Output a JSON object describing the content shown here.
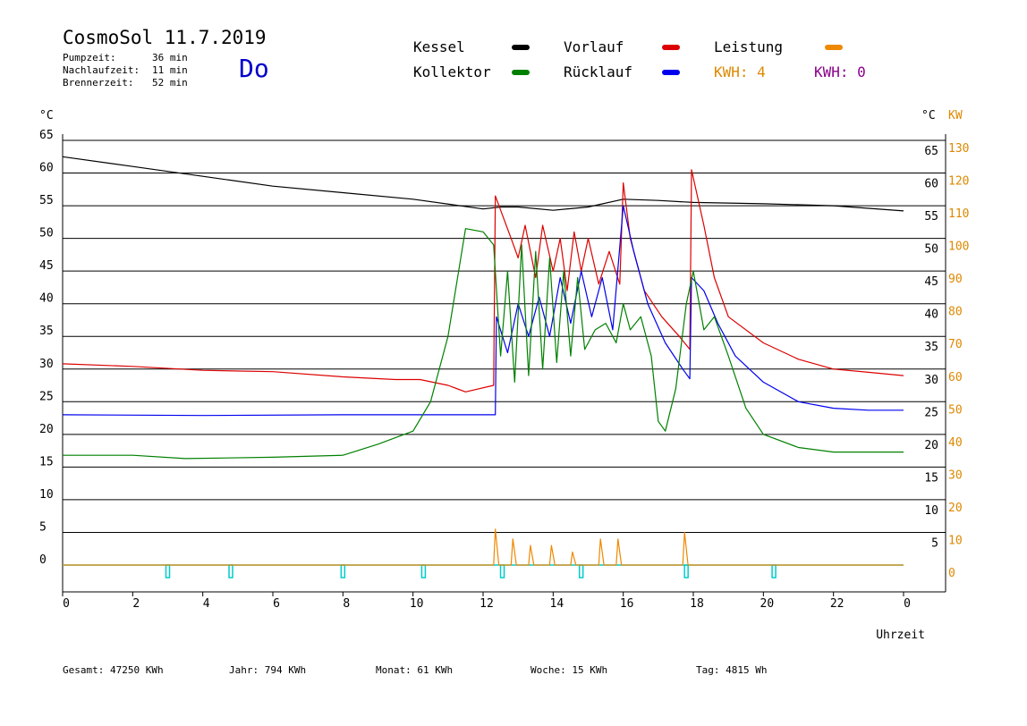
{
  "header": {
    "title": "CosmoSol 11.7.2019",
    "day": "Do",
    "stats": [
      {
        "label": "Pumpzeit:",
        "value": "36 min"
      },
      {
        "label": "Nachlaufzeit:",
        "value": "11 min"
      },
      {
        "label": "Brennerzeit:",
        "value": "52 min"
      }
    ]
  },
  "legend": {
    "kessel": {
      "label": "Kessel",
      "color": "#000000"
    },
    "vorlauf": {
      "label": "Vorlauf",
      "color": "#dd0000"
    },
    "leistung": {
      "label": "Leistung",
      "color": "#ee8800"
    },
    "kollektor": {
      "label": "Kollektor",
      "color": "#008000"
    },
    "ruecklauf": {
      "label": "Rücklauf",
      "color": "#0000ee"
    },
    "kwh1": {
      "label": "KWH: 4",
      "color": "#dd8800"
    },
    "kwh2": {
      "label": "KWH: 0",
      "color": "#880088"
    }
  },
  "footer": {
    "gesamt": "Gesamt:  47250 KWh",
    "jahr": "Jahr:    794 KWh",
    "monat": "Monat:    61 KWh",
    "woche": "Woche:    15 KWh",
    "tag": "Tag:   4815 Wh"
  },
  "chart_data": {
    "type": "line",
    "xlabel": "Uhrzeit",
    "ylabel_left": "°C",
    "ylabel_right_temp": "°C",
    "ylabel_right_power": "KW",
    "xlim": [
      0,
      24
    ],
    "ylim": [
      0,
      65
    ],
    "x_ticks": [
      "0",
      "2",
      "4",
      "6",
      "8",
      "10",
      "12",
      "14",
      "16",
      "18",
      "20",
      "22",
      "0"
    ],
    "y_ticks_left": [
      "0",
      "5",
      "10",
      "15",
      "20",
      "25",
      "30",
      "35",
      "40",
      "45",
      "50",
      "55",
      "60",
      "65"
    ],
    "y_ticks_right_temp": [
      "5",
      "10",
      "15",
      "20",
      "25",
      "30",
      "35",
      "40",
      "45",
      "50",
      "55",
      "60",
      "65"
    ],
    "y_ticks_right_power": [
      "0",
      "10",
      "20",
      "30",
      "40",
      "50",
      "60",
      "70",
      "80",
      "90",
      "100",
      "110",
      "120",
      "130"
    ],
    "grid": true,
    "series": [
      {
        "name": "Kessel",
        "color": "#000000",
        "points": [
          [
            0,
            62.5
          ],
          [
            2,
            61
          ],
          [
            4,
            59.5
          ],
          [
            6,
            58
          ],
          [
            8,
            57
          ],
          [
            10,
            56
          ],
          [
            12,
            54.5
          ],
          [
            12.5,
            54.8
          ],
          [
            13,
            54.8
          ],
          [
            14,
            54.3
          ],
          [
            15,
            54.8
          ],
          [
            16,
            56
          ],
          [
            17,
            55.8
          ],
          [
            18,
            55.5
          ],
          [
            20,
            55.3
          ],
          [
            22,
            55
          ],
          [
            24,
            54.2
          ]
        ]
      },
      {
        "name": "Vorlauf",
        "color": "#dd0000",
        "points": [
          [
            0,
            30.8
          ],
          [
            2,
            30.4
          ],
          [
            4,
            29.8
          ],
          [
            6,
            29.6
          ],
          [
            8,
            28.8
          ],
          [
            9.5,
            28.4
          ],
          [
            10.2,
            28.4
          ],
          [
            11,
            27.5
          ],
          [
            11.5,
            26.5
          ],
          [
            12.3,
            27.5
          ],
          [
            12.35,
            56.5
          ],
          [
            12.8,
            50
          ],
          [
            13,
            47
          ],
          [
            13.2,
            52
          ],
          [
            13.5,
            44
          ],
          [
            13.7,
            52
          ],
          [
            14,
            45
          ],
          [
            14.2,
            50
          ],
          [
            14.4,
            42
          ],
          [
            14.6,
            51
          ],
          [
            14.8,
            45
          ],
          [
            15,
            50
          ],
          [
            15.3,
            43
          ],
          [
            15.6,
            48
          ],
          [
            15.9,
            43
          ],
          [
            16.0,
            58.5
          ],
          [
            16.2,
            50
          ],
          [
            16.6,
            42
          ],
          [
            17.1,
            38
          ],
          [
            17.6,
            35
          ],
          [
            17.9,
            33
          ],
          [
            17.95,
            60.5
          ],
          [
            18.3,
            52
          ],
          [
            18.6,
            44
          ],
          [
            19,
            38
          ],
          [
            20,
            34
          ],
          [
            21,
            31.5
          ],
          [
            22,
            30
          ],
          [
            23,
            29.5
          ],
          [
            24,
            29
          ]
        ]
      },
      {
        "name": "Rücklauf",
        "color": "#0000ee",
        "points": [
          [
            0,
            23
          ],
          [
            4,
            22.9
          ],
          [
            8,
            23
          ],
          [
            10,
            23
          ],
          [
            12.35,
            23
          ],
          [
            12.38,
            38
          ],
          [
            12.7,
            32.5
          ],
          [
            13,
            40
          ],
          [
            13.3,
            35
          ],
          [
            13.6,
            41
          ],
          [
            13.9,
            35
          ],
          [
            14.2,
            44
          ],
          [
            14.5,
            37
          ],
          [
            14.8,
            45
          ],
          [
            15.1,
            38
          ],
          [
            15.4,
            44
          ],
          [
            15.7,
            36
          ],
          [
            16.0,
            55
          ],
          [
            16.3,
            48
          ],
          [
            16.7,
            40
          ],
          [
            17.2,
            34
          ],
          [
            17.7,
            30
          ],
          [
            17.9,
            28.5
          ],
          [
            17.95,
            44
          ],
          [
            18.3,
            42
          ],
          [
            18.7,
            37
          ],
          [
            19.2,
            32
          ],
          [
            20,
            28
          ],
          [
            21,
            25
          ],
          [
            22,
            24
          ],
          [
            23,
            23.7
          ],
          [
            24,
            23.7
          ]
        ]
      },
      {
        "name": "Kollektor",
        "color": "#008000",
        "points": [
          [
            0,
            16.8
          ],
          [
            2,
            16.8
          ],
          [
            3.5,
            16.3
          ],
          [
            6,
            16.5
          ],
          [
            8,
            16.8
          ],
          [
            9,
            18.5
          ],
          [
            10,
            20.5
          ],
          [
            10.5,
            25
          ],
          [
            11,
            35
          ],
          [
            11.5,
            51.5
          ],
          [
            12,
            51
          ],
          [
            12.3,
            49
          ],
          [
            12.5,
            32
          ],
          [
            12.7,
            45
          ],
          [
            12.9,
            28
          ],
          [
            13.1,
            49
          ],
          [
            13.3,
            29
          ],
          [
            13.5,
            48
          ],
          [
            13.7,
            30
          ],
          [
            13.9,
            47
          ],
          [
            14.1,
            31
          ],
          [
            14.3,
            45
          ],
          [
            14.5,
            32
          ],
          [
            14.7,
            44
          ],
          [
            14.9,
            33
          ],
          [
            15.2,
            36
          ],
          [
            15.5,
            37
          ],
          [
            15.8,
            34
          ],
          [
            16,
            40
          ],
          [
            16.2,
            36
          ],
          [
            16.5,
            38
          ],
          [
            16.8,
            32
          ],
          [
            17,
            22
          ],
          [
            17.2,
            20.5
          ],
          [
            17.5,
            27
          ],
          [
            17.8,
            40
          ],
          [
            18,
            45
          ],
          [
            18.3,
            36
          ],
          [
            18.6,
            38
          ],
          [
            19,
            32
          ],
          [
            19.5,
            24
          ],
          [
            20,
            20
          ],
          [
            21,
            18
          ],
          [
            22,
            17.3
          ],
          [
            24,
            17.3
          ]
        ]
      },
      {
        "name": "Leistung",
        "color": "#ee8800",
        "points": [
          [
            0,
            0
          ],
          [
            12.3,
            0
          ],
          [
            12.35,
            5.5
          ],
          [
            12.45,
            0
          ],
          [
            12.8,
            0
          ],
          [
            12.85,
            4
          ],
          [
            12.95,
            0
          ],
          [
            13.3,
            0
          ],
          [
            13.35,
            3
          ],
          [
            13.45,
            0
          ],
          [
            13.9,
            0
          ],
          [
            13.95,
            3
          ],
          [
            14.05,
            0
          ],
          [
            14.5,
            0
          ],
          [
            14.55,
            2
          ],
          [
            14.65,
            0
          ],
          [
            15.3,
            0
          ],
          [
            15.35,
            4
          ],
          [
            15.45,
            0
          ],
          [
            15.8,
            0
          ],
          [
            15.85,
            4
          ],
          [
            15.95,
            0
          ],
          [
            17.7,
            0
          ],
          [
            17.75,
            5
          ],
          [
            17.85,
            0
          ],
          [
            24,
            0
          ]
        ]
      }
    ],
    "markers": {
      "name": "Pumpe",
      "color": "#00cccc",
      "times": [
        3.0,
        4.8,
        8.0,
        10.3,
        12.55,
        14.8,
        17.8,
        20.3
      ]
    }
  }
}
